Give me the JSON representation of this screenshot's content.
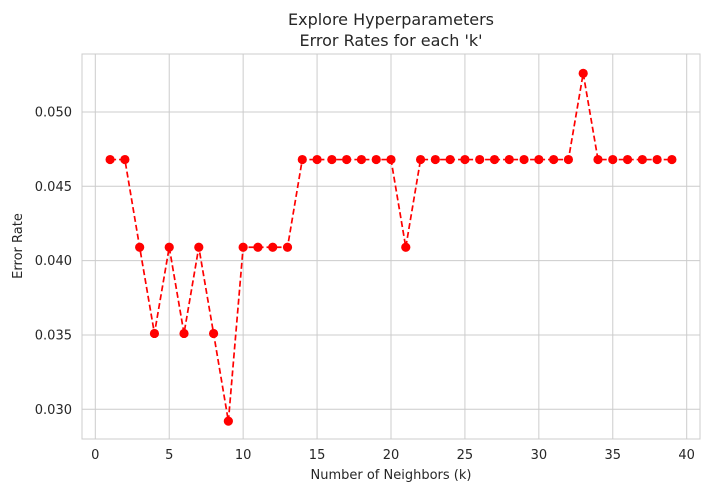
{
  "chart_data": {
    "type": "line",
    "title": "Explore Hyperparameters",
    "subtitle": "Error Rates for each 'k'",
    "xlabel": "Number of Neighbors (k)",
    "ylabel": "Error Rate",
    "xlim": [
      -0.9,
      40.9
    ],
    "ylim": [
      0.028,
      0.0539
    ],
    "xticks": [
      0,
      5,
      10,
      15,
      20,
      25,
      30,
      35,
      40
    ],
    "yticks": [
      0.03,
      0.035,
      0.04,
      0.045,
      0.05
    ],
    "ytick_labels": [
      "0.030",
      "0.035",
      "0.040",
      "0.045",
      "0.050"
    ],
    "grid": true,
    "series": [
      {
        "line_color": "#ff0000",
        "marker_color": "#ff0000",
        "line_style": "dashed",
        "marker": "circle",
        "x": [
          1,
          2,
          3,
          4,
          5,
          6,
          7,
          8,
          9,
          10,
          11,
          12,
          13,
          14,
          15,
          16,
          17,
          18,
          19,
          20,
          21,
          22,
          23,
          24,
          25,
          26,
          27,
          28,
          29,
          30,
          31,
          32,
          33,
          34,
          35,
          36,
          37,
          38,
          39
        ],
        "y": [
          0.0468,
          0.0468,
          0.0409,
          0.0351,
          0.0409,
          0.0351,
          0.0409,
          0.0351,
          0.0292,
          0.0409,
          0.0409,
          0.0409,
          0.0409,
          0.0468,
          0.0468,
          0.0468,
          0.0468,
          0.0468,
          0.0468,
          0.0468,
          0.0409,
          0.0468,
          0.0468,
          0.0468,
          0.0468,
          0.0468,
          0.0468,
          0.0468,
          0.0468,
          0.0468,
          0.0468,
          0.0468,
          0.0526,
          0.0468,
          0.0468,
          0.0468,
          0.0468,
          0.0468,
          0.0468
        ]
      }
    ]
  }
}
